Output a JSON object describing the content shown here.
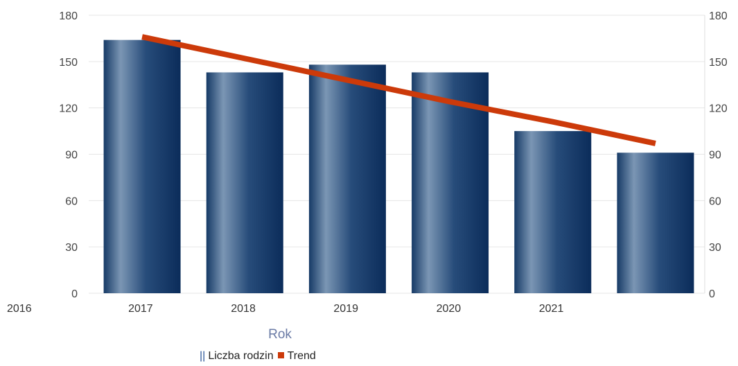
{
  "chart_data": {
    "type": "bar",
    "categories": [
      "2016",
      "2017",
      "2018",
      "2019",
      "2020",
      "2021"
    ],
    "series": [
      {
        "name": "Liczba rodzin",
        "type": "bar",
        "values": [
          164,
          143,
          148,
          143,
          105,
          91
        ]
      },
      {
        "name": "Trend",
        "type": "line",
        "values": [
          166,
          152,
          138,
          124,
          111,
          97
        ]
      }
    ],
    "xlabel": "Rok",
    "ylabel": "",
    "ylim": [
      0,
      180
    ],
    "yticks": [
      0,
      30,
      60,
      90,
      120,
      150,
      180
    ],
    "secondary_ylim": [
      0,
      180
    ],
    "grid": true,
    "legend": "bottom",
    "colors": {
      "bar_dark": "#0d2f5e",
      "bar_light": "#7b96b4",
      "trend": "#cc3a0a",
      "grid": "#e6e6e6"
    }
  },
  "legend": {
    "bar_marker": "||",
    "bar_label": "Liczba rodzin",
    "trend_label": "Trend"
  }
}
